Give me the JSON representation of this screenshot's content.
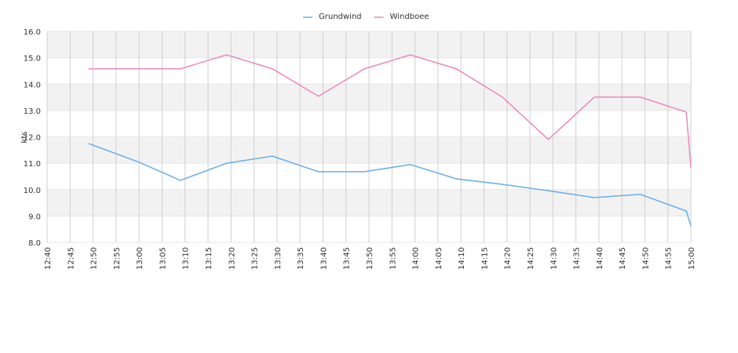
{
  "chart_data": {
    "type": "line",
    "y_label": "kts",
    "x": [
      "12:49",
      "13:00",
      "13:09",
      "13:19",
      "13:29",
      "13:39",
      "13:49",
      "13:59",
      "14:09",
      "14:19",
      "14:29",
      "14:39",
      "14:49",
      "14:59",
      "15:00"
    ],
    "series": [
      {
        "name": "Grundwind",
        "color": "#6aaee8",
        "values": [
          11.75,
          11.04,
          10.35,
          11.0,
          11.27,
          10.68,
          10.68,
          10.95,
          10.41,
          10.2,
          9.96,
          9.7,
          9.82,
          9.19,
          8.63
        ]
      },
      {
        "name": "Windboee",
        "color": "#ee88bb",
        "values": [
          14.58,
          14.58,
          14.58,
          15.11,
          14.58,
          13.54,
          14.58,
          15.11,
          14.58,
          13.51,
          11.9,
          13.51,
          13.51,
          12.94,
          10.83
        ]
      }
    ],
    "xlim": [
      "12:40",
      "15:00"
    ],
    "xticks": [
      "12:40",
      "12:45",
      "12:50",
      "12:55",
      "13:00",
      "13:05",
      "13:10",
      "13:15",
      "13:20",
      "13:25",
      "13:30",
      "13:35",
      "13:40",
      "13:45",
      "13:50",
      "13:55",
      "14:00",
      "14:05",
      "14:10",
      "14:15",
      "14:20",
      "14:25",
      "14:30",
      "14:35",
      "14:40",
      "14:45",
      "14:50",
      "14:55",
      "15:00"
    ],
    "ylim": [
      8,
      16
    ],
    "yticks": [
      {
        "value": 8,
        "label": "8.0"
      },
      {
        "value": 9,
        "label": "9.0"
      },
      {
        "value": 10,
        "label": "10.0"
      },
      {
        "value": 11,
        "label": "11.0"
      },
      {
        "value": 12,
        "label": "12.0"
      },
      {
        "value": 13,
        "label": "13.0"
      },
      {
        "value": 14,
        "label": "14.0"
      },
      {
        "value": 15,
        "label": "15.0"
      },
      {
        "value": 16,
        "label": "16.0"
      }
    ],
    "grid": true,
    "legend": "top"
  }
}
